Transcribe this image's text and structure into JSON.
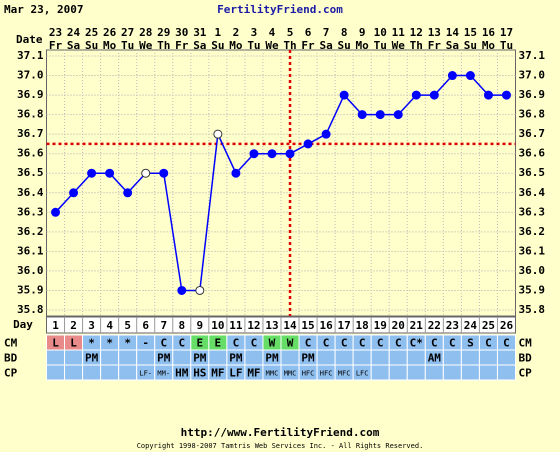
{
  "chart_data": {
    "type": "line",
    "title": "FertilityFriend.com",
    "start_date": "Mar 23, 2007",
    "date_label": "Date",
    "day_label": "Day",
    "dates": [
      "23",
      "24",
      "25",
      "26",
      "27",
      "28",
      "29",
      "30",
      "31",
      "1",
      "2",
      "3",
      "4",
      "5",
      "6",
      "7",
      "8",
      "9",
      "10",
      "11",
      "12",
      "13",
      "14",
      "15",
      "16",
      "17"
    ],
    "weekdays": [
      "Fr",
      "Sa",
      "Su",
      "Mo",
      "Tu",
      "We",
      "Th",
      "Fr",
      "Sa",
      "Su",
      "Mo",
      "Tu",
      "We",
      "Th",
      "Fr",
      "Sa",
      "Su",
      "Mo",
      "Tu",
      "We",
      "Th",
      "Fr",
      "Sa",
      "Su",
      "Mo",
      "Tu"
    ],
    "days": [
      1,
      2,
      3,
      4,
      5,
      6,
      7,
      8,
      9,
      10,
      11,
      12,
      13,
      14,
      15,
      16,
      17,
      18,
      19,
      20,
      21,
      22,
      23,
      24,
      25,
      26
    ],
    "values": [
      36.3,
      36.4,
      36.5,
      36.5,
      36.4,
      36.5,
      36.5,
      35.9,
      35.9,
      36.7,
      36.5,
      36.6,
      36.6,
      36.6,
      36.65,
      36.7,
      36.9,
      36.8,
      36.8,
      36.8,
      36.9,
      36.9,
      37.0,
      37.0,
      36.9,
      36.9
    ],
    "open_points": [
      false,
      false,
      false,
      false,
      false,
      true,
      false,
      false,
      true,
      true,
      false,
      false,
      false,
      false,
      false,
      false,
      false,
      false,
      false,
      false,
      false,
      false,
      false,
      false,
      false,
      false
    ],
    "color": "#0000ff",
    "coverline": 36.65,
    "ovulation_day": 14,
    "marker_line_color": "#dd0000",
    "ylim": [
      35.8,
      37.1
    ],
    "yticks": [
      37.1,
      {
        "value": 37.0,
        "label": "37.0"
      },
      36.9,
      36.8,
      36.7,
      36.6,
      36.5,
      36.4,
      36.3,
      36.2,
      36.1,
      {
        "value": 36.0,
        "label": "36.0"
      },
      35.9,
      35.8
    ],
    "grid": true,
    "rows": [
      {
        "name": "CM",
        "values": [
          "L",
          "L",
          "*",
          "*",
          "*",
          "-",
          "C",
          "C",
          "E",
          "E",
          "C",
          "C",
          "W",
          "W",
          "C",
          "C",
          "C",
          "C",
          "C",
          "C",
          "C*",
          "C",
          "C",
          "S",
          "C",
          "C"
        ],
        "colors": [
          "#e88a8a",
          "#e88a8a",
          null,
          null,
          null,
          null,
          null,
          null,
          "#66dd66",
          "#66dd66",
          null,
          null,
          "#66dd66",
          "#66dd66",
          null,
          null,
          null,
          null,
          null,
          null,
          null,
          null,
          null,
          null,
          null,
          null
        ]
      },
      {
        "name": "BD",
        "values": [
          null,
          null,
          "PM",
          null,
          null,
          null,
          "PM",
          null,
          "PM",
          null,
          "PM",
          null,
          "PM",
          null,
          "PM",
          null,
          null,
          null,
          null,
          null,
          null,
          "AM",
          null,
          null,
          null,
          null
        ]
      },
      {
        "name": "CP",
        "values": [
          null,
          null,
          null,
          null,
          null,
          "LF-",
          "MM-",
          "HM",
          "HS",
          "MF",
          "LF",
          "MF",
          "MMC",
          "MMC",
          "HFC",
          "HFC",
          "MFC",
          "LFC",
          null,
          null,
          null,
          null,
          null,
          null,
          null,
          null
        ]
      }
    ],
    "row_color": "#8fbfef",
    "url": "http://www.FertilityFriend.com",
    "copyright": "Copyright 1998-2007 Tamtris Web Services Inc. - All Rights Reserved."
  }
}
